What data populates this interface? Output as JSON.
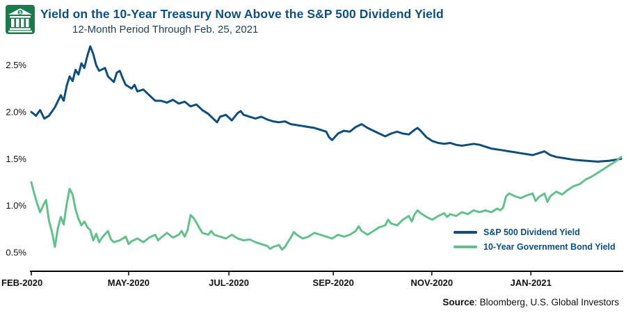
{
  "source": {
    "label": "Source",
    "text": ": Bloomberg, U.S. Global Investors"
  },
  "colors": {
    "navy": "#0e4d7c",
    "green": "#63c08d",
    "icon_green": "#1a7a4c",
    "axis": "#000000"
  },
  "chart_data": {
    "type": "line",
    "title": "Yield on the 10-Year Treasury Now Above the S&P 500 Dividend Yield",
    "subtitle": "12-Month Period Through Feb. 25, 2021",
    "xlabel": "",
    "ylabel": "",
    "ylim": [
      0.3,
      2.75
    ],
    "grid": false,
    "legend_position": "inside-bottom-right",
    "y_ticks": [
      "0.5%",
      "1.0%",
      "1.5%",
      "2.0%",
      "2.5%"
    ],
    "y_tick_values": [
      0.5,
      1.0,
      1.5,
      2.0,
      2.5
    ],
    "x_ticks": [
      {
        "label": "FEB-2020",
        "f": 0.0
      },
      {
        "label": "MAY-2020",
        "f": 0.165
      },
      {
        "label": "JUL-2020",
        "f": 0.335
      },
      {
        "label": "SEP-2020",
        "f": 0.512
      },
      {
        "label": "NOV-2020",
        "f": 0.679
      },
      {
        "label": "JAN-2021",
        "f": 0.847
      }
    ],
    "series": [
      {
        "name": "S&P 500 Dividend Yield",
        "color": "#0e4d7c",
        "points": [
          [
            0,
            2.0
          ],
          [
            0.008,
            1.96
          ],
          [
            0.015,
            2.02
          ],
          [
            0.022,
            1.93
          ],
          [
            0.03,
            1.96
          ],
          [
            0.04,
            2.05
          ],
          [
            0.05,
            2.18
          ],
          [
            0.055,
            2.12
          ],
          [
            0.06,
            2.28
          ],
          [
            0.065,
            2.38
          ],
          [
            0.07,
            2.33
          ],
          [
            0.075,
            2.45
          ],
          [
            0.08,
            2.4
          ],
          [
            0.085,
            2.52
          ],
          [
            0.09,
            2.47
          ],
          [
            0.095,
            2.6
          ],
          [
            0.1,
            2.7
          ],
          [
            0.105,
            2.62
          ],
          [
            0.11,
            2.5
          ],
          [
            0.115,
            2.44
          ],
          [
            0.125,
            2.47
          ],
          [
            0.13,
            2.38
          ],
          [
            0.14,
            2.32
          ],
          [
            0.145,
            2.42
          ],
          [
            0.15,
            2.44
          ],
          [
            0.155,
            2.36
          ],
          [
            0.16,
            2.29
          ],
          [
            0.17,
            2.25
          ],
          [
            0.175,
            2.29
          ],
          [
            0.18,
            2.22
          ],
          [
            0.19,
            2.24
          ],
          [
            0.2,
            2.18
          ],
          [
            0.21,
            2.12
          ],
          [
            0.22,
            2.12
          ],
          [
            0.23,
            2.1
          ],
          [
            0.24,
            2.13
          ],
          [
            0.25,
            2.09
          ],
          [
            0.26,
            2.11
          ],
          [
            0.27,
            2.06
          ],
          [
            0.28,
            2.08
          ],
          [
            0.29,
            2.02
          ],
          [
            0.3,
            1.98
          ],
          [
            0.31,
            1.92
          ],
          [
            0.315,
            1.89
          ],
          [
            0.32,
            1.95
          ],
          [
            0.33,
            1.97
          ],
          [
            0.34,
            1.91
          ],
          [
            0.35,
            1.99
          ],
          [
            0.355,
            2.01
          ],
          [
            0.36,
            1.97
          ],
          [
            0.37,
            1.95
          ],
          [
            0.38,
            1.93
          ],
          [
            0.39,
            1.95
          ],
          [
            0.4,
            1.92
          ],
          [
            0.41,
            1.9
          ],
          [
            0.42,
            1.89
          ],
          [
            0.43,
            1.9
          ],
          [
            0.44,
            1.87
          ],
          [
            0.45,
            1.86
          ],
          [
            0.46,
            1.85
          ],
          [
            0.47,
            1.84
          ],
          [
            0.48,
            1.83
          ],
          [
            0.49,
            1.81
          ],
          [
            0.5,
            1.79
          ],
          [
            0.505,
            1.73
          ],
          [
            0.51,
            1.7
          ],
          [
            0.52,
            1.77
          ],
          [
            0.53,
            1.8
          ],
          [
            0.54,
            1.79
          ],
          [
            0.55,
            1.84
          ],
          [
            0.56,
            1.87
          ],
          [
            0.57,
            1.83
          ],
          [
            0.58,
            1.8
          ],
          [
            0.59,
            1.77
          ],
          [
            0.6,
            1.74
          ],
          [
            0.61,
            1.77
          ],
          [
            0.62,
            1.79
          ],
          [
            0.63,
            1.77
          ],
          [
            0.64,
            1.76
          ],
          [
            0.65,
            1.81
          ],
          [
            0.655,
            1.83
          ],
          [
            0.66,
            1.8
          ],
          [
            0.67,
            1.73
          ],
          [
            0.68,
            1.69
          ],
          [
            0.69,
            1.67
          ],
          [
            0.7,
            1.66
          ],
          [
            0.71,
            1.67
          ],
          [
            0.72,
            1.65
          ],
          [
            0.73,
            1.64
          ],
          [
            0.74,
            1.65
          ],
          [
            0.75,
            1.66
          ],
          [
            0.76,
            1.65
          ],
          [
            0.77,
            1.63
          ],
          [
            0.78,
            1.61
          ],
          [
            0.79,
            1.6
          ],
          [
            0.8,
            1.59
          ],
          [
            0.81,
            1.58
          ],
          [
            0.82,
            1.57
          ],
          [
            0.83,
            1.56
          ],
          [
            0.84,
            1.55
          ],
          [
            0.85,
            1.54
          ],
          [
            0.86,
            1.56
          ],
          [
            0.87,
            1.58
          ],
          [
            0.88,
            1.54
          ],
          [
            0.89,
            1.52
          ],
          [
            0.9,
            1.51
          ],
          [
            0.92,
            1.49
          ],
          [
            0.94,
            1.48
          ],
          [
            0.96,
            1.47
          ],
          [
            0.98,
            1.48
          ],
          [
            1,
            1.5
          ]
        ]
      },
      {
        "name": "10-Year Government Bond Yield",
        "color": "#63c08d",
        "points": [
          [
            0,
            1.25
          ],
          [
            0.005,
            1.13
          ],
          [
            0.01,
            1.02
          ],
          [
            0.015,
            0.93
          ],
          [
            0.02,
            1.0
          ],
          [
            0.025,
            1.06
          ],
          [
            0.03,
            0.84
          ],
          [
            0.035,
            0.72
          ],
          [
            0.04,
            0.56
          ],
          [
            0.045,
            0.76
          ],
          [
            0.05,
            0.88
          ],
          [
            0.055,
            0.8
          ],
          [
            0.06,
            1.02
          ],
          [
            0.065,
            1.18
          ],
          [
            0.07,
            1.12
          ],
          [
            0.075,
            0.96
          ],
          [
            0.08,
            0.86
          ],
          [
            0.085,
            0.79
          ],
          [
            0.09,
            0.83
          ],
          [
            0.095,
            0.77
          ],
          [
            0.1,
            0.74
          ],
          [
            0.105,
            0.63
          ],
          [
            0.11,
            0.7
          ],
          [
            0.115,
            0.61
          ],
          [
            0.12,
            0.66
          ],
          [
            0.13,
            0.73
          ],
          [
            0.135,
            0.64
          ],
          [
            0.14,
            0.61
          ],
          [
            0.15,
            0.63
          ],
          [
            0.16,
            0.67
          ],
          [
            0.165,
            0.59
          ],
          [
            0.17,
            0.62
          ],
          [
            0.18,
            0.65
          ],
          [
            0.19,
            0.61
          ],
          [
            0.2,
            0.66
          ],
          [
            0.21,
            0.69
          ],
          [
            0.215,
            0.63
          ],
          [
            0.22,
            0.66
          ],
          [
            0.23,
            0.71
          ],
          [
            0.24,
            0.66
          ],
          [
            0.25,
            0.69
          ],
          [
            0.255,
            0.73
          ],
          [
            0.26,
            0.67
          ],
          [
            0.265,
            0.74
          ],
          [
            0.27,
            0.9
          ],
          [
            0.275,
            0.87
          ],
          [
            0.28,
            0.82
          ],
          [
            0.285,
            0.76
          ],
          [
            0.29,
            0.71
          ],
          [
            0.3,
            0.69
          ],
          [
            0.305,
            0.73
          ],
          [
            0.31,
            0.69
          ],
          [
            0.32,
            0.67
          ],
          [
            0.33,
            0.65
          ],
          [
            0.34,
            0.69
          ],
          [
            0.35,
            0.65
          ],
          [
            0.36,
            0.63
          ],
          [
            0.37,
            0.64
          ],
          [
            0.38,
            0.61
          ],
          [
            0.39,
            0.59
          ],
          [
            0.4,
            0.57
          ],
          [
            0.405,
            0.54
          ],
          [
            0.41,
            0.56
          ],
          [
            0.42,
            0.58
          ],
          [
            0.425,
            0.53
          ],
          [
            0.43,
            0.56
          ],
          [
            0.44,
            0.66
          ],
          [
            0.445,
            0.72
          ],
          [
            0.45,
            0.69
          ],
          [
            0.46,
            0.65
          ],
          [
            0.47,
            0.67
          ],
          [
            0.48,
            0.71
          ],
          [
            0.49,
            0.69
          ],
          [
            0.5,
            0.67
          ],
          [
            0.51,
            0.65
          ],
          [
            0.52,
            0.69
          ],
          [
            0.53,
            0.67
          ],
          [
            0.54,
            0.69
          ],
          [
            0.55,
            0.73
          ],
          [
            0.555,
            0.78
          ],
          [
            0.56,
            0.73
          ],
          [
            0.57,
            0.69
          ],
          [
            0.58,
            0.73
          ],
          [
            0.59,
            0.77
          ],
          [
            0.6,
            0.79
          ],
          [
            0.605,
            0.85
          ],
          [
            0.61,
            0.81
          ],
          [
            0.62,
            0.79
          ],
          [
            0.63,
            0.85
          ],
          [
            0.64,
            0.89
          ],
          [
            0.645,
            0.83
          ],
          [
            0.65,
            0.91
          ],
          [
            0.655,
            0.95
          ],
          [
            0.66,
            0.92
          ],
          [
            0.67,
            0.88
          ],
          [
            0.68,
            0.85
          ],
          [
            0.69,
            0.89
          ],
          [
            0.7,
            0.92
          ],
          [
            0.705,
            0.88
          ],
          [
            0.71,
            0.91
          ],
          [
            0.72,
            0.89
          ],
          [
            0.73,
            0.93
          ],
          [
            0.74,
            0.91
          ],
          [
            0.75,
            0.95
          ],
          [
            0.76,
            0.93
          ],
          [
            0.77,
            0.95
          ],
          [
            0.78,
            0.93
          ],
          [
            0.79,
            0.97
          ],
          [
            0.795,
            0.95
          ],
          [
            0.8,
            0.98
          ],
          [
            0.805,
            1.1
          ],
          [
            0.81,
            1.13
          ],
          [
            0.82,
            1.1
          ],
          [
            0.83,
            1.08
          ],
          [
            0.84,
            1.11
          ],
          [
            0.85,
            1.13
          ],
          [
            0.855,
            1.05
          ],
          [
            0.86,
            1.09
          ],
          [
            0.87,
            1.13
          ],
          [
            0.875,
            1.04
          ],
          [
            0.88,
            1.1
          ],
          [
            0.89,
            1.15
          ],
          [
            0.9,
            1.12
          ],
          [
            0.91,
            1.17
          ],
          [
            0.92,
            1.21
          ],
          [
            0.93,
            1.23
          ],
          [
            0.94,
            1.28
          ],
          [
            0.95,
            1.31
          ],
          [
            0.96,
            1.35
          ],
          [
            0.97,
            1.39
          ],
          [
            0.98,
            1.43
          ],
          [
            0.99,
            1.47
          ],
          [
            1,
            1.52
          ]
        ]
      }
    ]
  }
}
